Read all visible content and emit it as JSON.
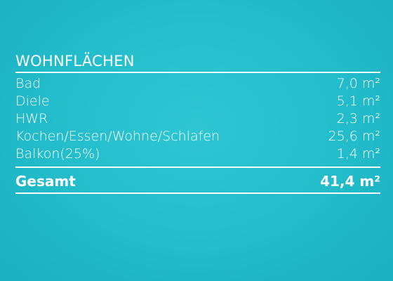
{
  "heading": "WOHNFLÄCHEN",
  "rooms": [
    {
      "label": "Bad",
      "value": "7,0 m²"
    },
    {
      "label": "Diele",
      "value": "5,1 m²"
    },
    {
      "label": "HWR",
      "value": "2,3 m²"
    },
    {
      "label": "Kochen/Essen/Wohne/Schlafen",
      "value": "25,6 m²"
    },
    {
      "label": "Balkon(25%)",
      "value": "1,4 m²"
    }
  ],
  "total": {
    "label": "Gesamt",
    "value": "41,4 m²"
  },
  "colors": {
    "background": "#22bccb",
    "text": "#ffffff"
  }
}
